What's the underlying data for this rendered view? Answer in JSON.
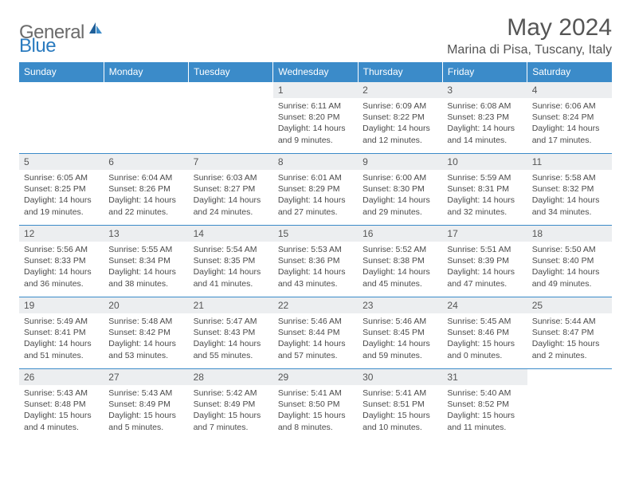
{
  "logo": {
    "text1": "General",
    "text2": "Blue"
  },
  "header": {
    "month": "May 2024",
    "location": "Marina di Pisa, Tuscany, Italy"
  },
  "colors": {
    "header_bg": "#3b8bc9",
    "header_text": "#ffffff",
    "daynum_bg": "#eceef0",
    "border": "#3b8bc9",
    "logo_gray": "#6b6b6b",
    "logo_blue": "#2b7bbf"
  },
  "weekdays": [
    "Sunday",
    "Monday",
    "Tuesday",
    "Wednesday",
    "Thursday",
    "Friday",
    "Saturday"
  ],
  "weeks": [
    [
      {
        "n": "",
        "sr": "",
        "ss": "",
        "dl": ""
      },
      {
        "n": "",
        "sr": "",
        "ss": "",
        "dl": ""
      },
      {
        "n": "",
        "sr": "",
        "ss": "",
        "dl": ""
      },
      {
        "n": "1",
        "sr": "Sunrise: 6:11 AM",
        "ss": "Sunset: 8:20 PM",
        "dl": "Daylight: 14 hours and 9 minutes."
      },
      {
        "n": "2",
        "sr": "Sunrise: 6:09 AM",
        "ss": "Sunset: 8:22 PM",
        "dl": "Daylight: 14 hours and 12 minutes."
      },
      {
        "n": "3",
        "sr": "Sunrise: 6:08 AM",
        "ss": "Sunset: 8:23 PM",
        "dl": "Daylight: 14 hours and 14 minutes."
      },
      {
        "n": "4",
        "sr": "Sunrise: 6:06 AM",
        "ss": "Sunset: 8:24 PM",
        "dl": "Daylight: 14 hours and 17 minutes."
      }
    ],
    [
      {
        "n": "5",
        "sr": "Sunrise: 6:05 AM",
        "ss": "Sunset: 8:25 PM",
        "dl": "Daylight: 14 hours and 19 minutes."
      },
      {
        "n": "6",
        "sr": "Sunrise: 6:04 AM",
        "ss": "Sunset: 8:26 PM",
        "dl": "Daylight: 14 hours and 22 minutes."
      },
      {
        "n": "7",
        "sr": "Sunrise: 6:03 AM",
        "ss": "Sunset: 8:27 PM",
        "dl": "Daylight: 14 hours and 24 minutes."
      },
      {
        "n": "8",
        "sr": "Sunrise: 6:01 AM",
        "ss": "Sunset: 8:29 PM",
        "dl": "Daylight: 14 hours and 27 minutes."
      },
      {
        "n": "9",
        "sr": "Sunrise: 6:00 AM",
        "ss": "Sunset: 8:30 PM",
        "dl": "Daylight: 14 hours and 29 minutes."
      },
      {
        "n": "10",
        "sr": "Sunrise: 5:59 AM",
        "ss": "Sunset: 8:31 PM",
        "dl": "Daylight: 14 hours and 32 minutes."
      },
      {
        "n": "11",
        "sr": "Sunrise: 5:58 AM",
        "ss": "Sunset: 8:32 PM",
        "dl": "Daylight: 14 hours and 34 minutes."
      }
    ],
    [
      {
        "n": "12",
        "sr": "Sunrise: 5:56 AM",
        "ss": "Sunset: 8:33 PM",
        "dl": "Daylight: 14 hours and 36 minutes."
      },
      {
        "n": "13",
        "sr": "Sunrise: 5:55 AM",
        "ss": "Sunset: 8:34 PM",
        "dl": "Daylight: 14 hours and 38 minutes."
      },
      {
        "n": "14",
        "sr": "Sunrise: 5:54 AM",
        "ss": "Sunset: 8:35 PM",
        "dl": "Daylight: 14 hours and 41 minutes."
      },
      {
        "n": "15",
        "sr": "Sunrise: 5:53 AM",
        "ss": "Sunset: 8:36 PM",
        "dl": "Daylight: 14 hours and 43 minutes."
      },
      {
        "n": "16",
        "sr": "Sunrise: 5:52 AM",
        "ss": "Sunset: 8:38 PM",
        "dl": "Daylight: 14 hours and 45 minutes."
      },
      {
        "n": "17",
        "sr": "Sunrise: 5:51 AM",
        "ss": "Sunset: 8:39 PM",
        "dl": "Daylight: 14 hours and 47 minutes."
      },
      {
        "n": "18",
        "sr": "Sunrise: 5:50 AM",
        "ss": "Sunset: 8:40 PM",
        "dl": "Daylight: 14 hours and 49 minutes."
      }
    ],
    [
      {
        "n": "19",
        "sr": "Sunrise: 5:49 AM",
        "ss": "Sunset: 8:41 PM",
        "dl": "Daylight: 14 hours and 51 minutes."
      },
      {
        "n": "20",
        "sr": "Sunrise: 5:48 AM",
        "ss": "Sunset: 8:42 PM",
        "dl": "Daylight: 14 hours and 53 minutes."
      },
      {
        "n": "21",
        "sr": "Sunrise: 5:47 AM",
        "ss": "Sunset: 8:43 PM",
        "dl": "Daylight: 14 hours and 55 minutes."
      },
      {
        "n": "22",
        "sr": "Sunrise: 5:46 AM",
        "ss": "Sunset: 8:44 PM",
        "dl": "Daylight: 14 hours and 57 minutes."
      },
      {
        "n": "23",
        "sr": "Sunrise: 5:46 AM",
        "ss": "Sunset: 8:45 PM",
        "dl": "Daylight: 14 hours and 59 minutes."
      },
      {
        "n": "24",
        "sr": "Sunrise: 5:45 AM",
        "ss": "Sunset: 8:46 PM",
        "dl": "Daylight: 15 hours and 0 minutes."
      },
      {
        "n": "25",
        "sr": "Sunrise: 5:44 AM",
        "ss": "Sunset: 8:47 PM",
        "dl": "Daylight: 15 hours and 2 minutes."
      }
    ],
    [
      {
        "n": "26",
        "sr": "Sunrise: 5:43 AM",
        "ss": "Sunset: 8:48 PM",
        "dl": "Daylight: 15 hours and 4 minutes."
      },
      {
        "n": "27",
        "sr": "Sunrise: 5:43 AM",
        "ss": "Sunset: 8:49 PM",
        "dl": "Daylight: 15 hours and 5 minutes."
      },
      {
        "n": "28",
        "sr": "Sunrise: 5:42 AM",
        "ss": "Sunset: 8:49 PM",
        "dl": "Daylight: 15 hours and 7 minutes."
      },
      {
        "n": "29",
        "sr": "Sunrise: 5:41 AM",
        "ss": "Sunset: 8:50 PM",
        "dl": "Daylight: 15 hours and 8 minutes."
      },
      {
        "n": "30",
        "sr": "Sunrise: 5:41 AM",
        "ss": "Sunset: 8:51 PM",
        "dl": "Daylight: 15 hours and 10 minutes."
      },
      {
        "n": "31",
        "sr": "Sunrise: 5:40 AM",
        "ss": "Sunset: 8:52 PM",
        "dl": "Daylight: 15 hours and 11 minutes."
      },
      {
        "n": "",
        "sr": "",
        "ss": "",
        "dl": ""
      }
    ]
  ]
}
